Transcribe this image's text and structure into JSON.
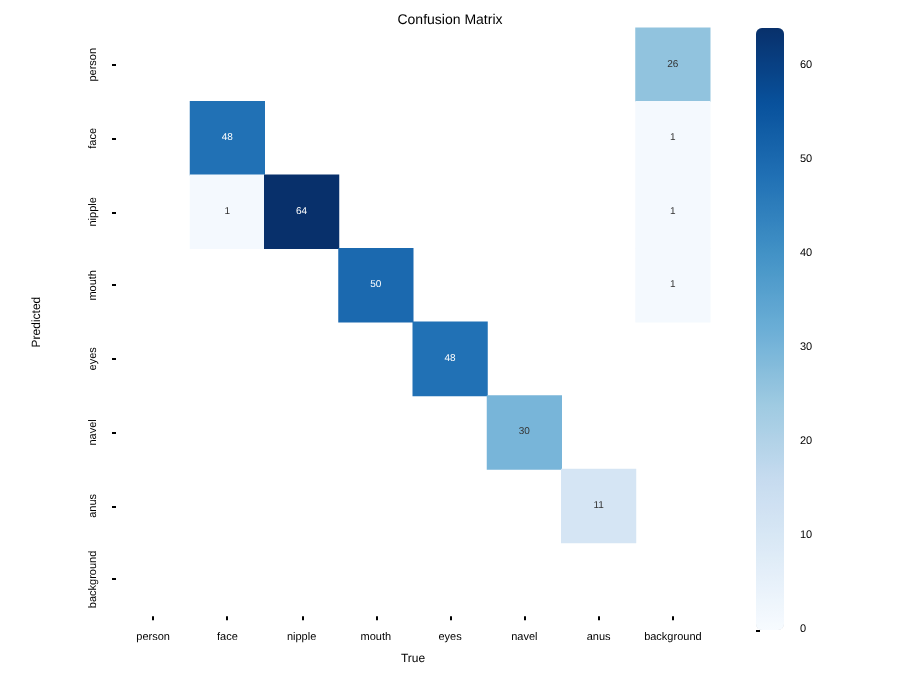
{
  "chart_data": {
    "type": "heatmap",
    "title": "Confusion Matrix",
    "xlabel": "True",
    "ylabel": "Predicted",
    "categories": [
      "person",
      "face",
      "nipple",
      "mouth",
      "eyes",
      "navel",
      "anus",
      "background"
    ],
    "y_categories": [
      "person",
      "face",
      "nipple",
      "mouth",
      "eyes",
      "navel",
      "anus",
      "background"
    ],
    "cells": [
      [
        null,
        null,
        null,
        null,
        null,
        null,
        null,
        26
      ],
      [
        null,
        48,
        null,
        null,
        null,
        null,
        null,
        1
      ],
      [
        null,
        1,
        64,
        null,
        null,
        null,
        null,
        1
      ],
      [
        null,
        null,
        null,
        50,
        null,
        null,
        null,
        1
      ],
      [
        null,
        null,
        null,
        null,
        48,
        null,
        null,
        null
      ],
      [
        null,
        null,
        null,
        null,
        null,
        30,
        null,
        null
      ],
      [
        null,
        null,
        null,
        null,
        null,
        null,
        11,
        null
      ],
      [
        null,
        null,
        null,
        null,
        null,
        null,
        null,
        null
      ]
    ],
    "data_labels": true,
    "clim": [
      0,
      64
    ],
    "cticks": [
      0,
      10,
      20,
      30,
      40,
      50,
      60
    ]
  }
}
